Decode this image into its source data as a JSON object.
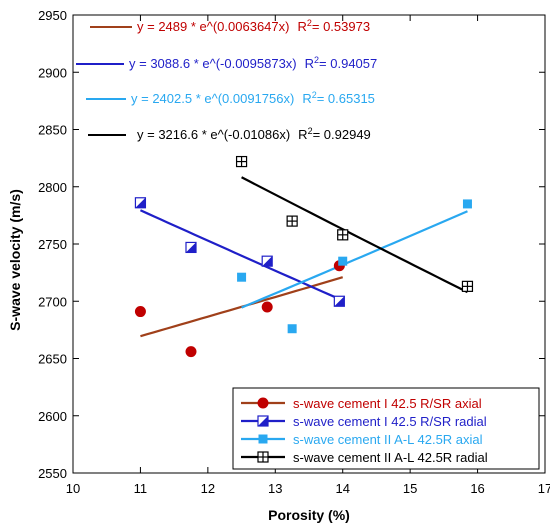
{
  "chart_data": {
    "type": "scatter",
    "xlabel": "Porosity (%)",
    "ylabel": "S-wave velocity (m/s)",
    "xlim": [
      10,
      17
    ],
    "ylim": [
      2550,
      2950
    ],
    "xticks": [
      10,
      11,
      12,
      13,
      14,
      15,
      16,
      17
    ],
    "yticks": [
      2550,
      2600,
      2650,
      2700,
      2750,
      2800,
      2850,
      2900,
      2950
    ],
    "xtick_labels": [
      "10",
      "11",
      "12",
      "13",
      "14",
      "15",
      "16",
      "17"
    ],
    "ytick_labels": [
      "2550",
      "2600",
      "2650",
      "2700",
      "2750",
      "2800",
      "2850",
      "2900",
      "2950"
    ],
    "grid": false,
    "legend_position": "bottom-right",
    "series": [
      {
        "name": "s-wave cement I 42.5 R/SR axial",
        "color": "#c00000",
        "line_color": "#a0401a",
        "marker": "circle",
        "points": [
          [
            11.0,
            2691
          ],
          [
            11.75,
            2656
          ],
          [
            12.88,
            2695
          ],
          [
            13.95,
            2731
          ]
        ],
        "fit": {
          "a": 2489,
          "b": 0.0063647,
          "x_range": [
            11.0,
            14.0
          ]
        },
        "equation": "y = 2489 * e^(0.0063647x)",
        "r2_label": "R",
        "r2_value": "= 0.53973",
        "eq_color": "#c00000"
      },
      {
        "name": "s-wave cement I 42.5 R/SR radial",
        "color": "#1f1fc8",
        "line_color": "#1f1fc8",
        "marker": "half-square",
        "points": [
          [
            11.0,
            2786
          ],
          [
            11.75,
            2747
          ],
          [
            12.88,
            2735
          ],
          [
            13.95,
            2700
          ]
        ],
        "fit": {
          "a": 3088.6,
          "b": -0.0095873,
          "x_range": [
            11.0,
            14.0
          ]
        },
        "equation": "y = 3088.6 * e^(-0.0095873x)",
        "r2_label": "R",
        "r2_value": "= 0.94057",
        "eq_color": "#1f1fc8"
      },
      {
        "name": "s-wave cement II  A-L 42.5R  axial",
        "color": "#29a8f0",
        "line_color": "#29a8f0",
        "marker": "square",
        "points": [
          [
            12.5,
            2721
          ],
          [
            13.25,
            2676
          ],
          [
            14.0,
            2735
          ],
          [
            15.85,
            2785
          ]
        ],
        "fit": {
          "a": 2402.5,
          "b": 0.0091756,
          "x_range": [
            12.5,
            15.85
          ]
        },
        "equation": "y = 2402.5 * e^(0.0091756x)",
        "r2_label": "R",
        "r2_value": "= 0.65315",
        "eq_color": "#29a8f0"
      },
      {
        "name": "s-wave cement II  A-L 42.5R radial",
        "color": "#000000",
        "line_color": "#000000",
        "marker": "crossed-square",
        "points": [
          [
            12.5,
            2822
          ],
          [
            13.25,
            2770
          ],
          [
            14.0,
            2758
          ],
          [
            15.85,
            2713
          ]
        ],
        "fit": {
          "a": 3216.6,
          "b": -0.01086,
          "x_range": [
            12.5,
            15.85
          ]
        },
        "equation": "y = 3216.6 * e^(-0.01086x)",
        "r2_label": "R",
        "r2_value": "= 0.92949",
        "eq_color": "#000000"
      }
    ],
    "superscript": "2"
  }
}
